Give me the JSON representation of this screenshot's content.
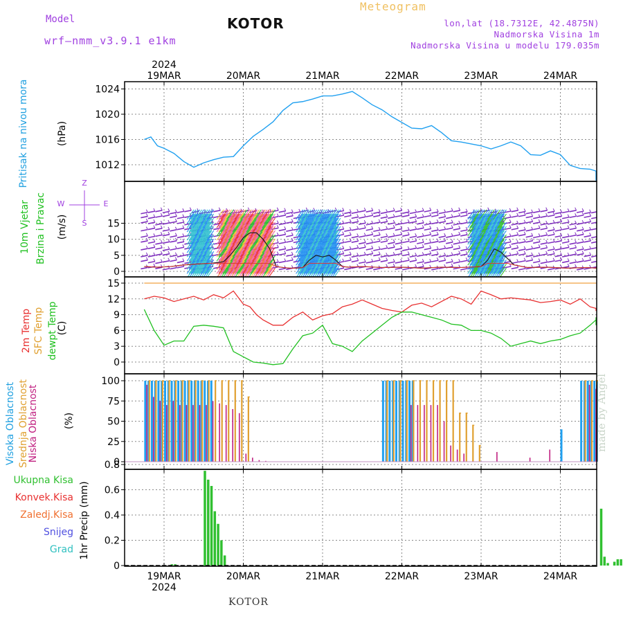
{
  "header": {
    "model_label": "Model",
    "model_name": "wrf—nmm_v3.9.1  e1km",
    "title": "KOTOR",
    "meteogram": "Meteogram",
    "lonlat": "lon,lat (18.7312E, 42.4875N)",
    "altitude": "Nadmorska Visina 1m",
    "model_altitude": "Nadmorska Visina u modelu 179.035m"
  },
  "footer": {
    "station": "KOTOR",
    "credit": "made by Angel"
  },
  "time_axis": {
    "year": "2024",
    "days": [
      "19MAR",
      "20MAR",
      "21MAR",
      "22MAR",
      "23MAR",
      "24MAR"
    ],
    "start_hour": 0,
    "end_hour": 142
  },
  "panels": {
    "pressure": {
      "label": "Pritisak na nivou mora",
      "unit": "(hPa)",
      "ticks": [
        "1012",
        "1016",
        "1020",
        "1024"
      ]
    },
    "wind": {
      "label_line1": "10m Vjetar",
      "label_line2": "Brzina i Pravac",
      "unit": "(m/s)",
      "legend_top": "Z",
      "legend_left": "W",
      "legend_right": "E",
      "legend_bottom": "S",
      "ticks": [
        "0",
        "5",
        "10",
        "15"
      ]
    },
    "temp": {
      "label1": "2m Temp",
      "label2": "SFC Temp",
      "label3": "dewpt Temp",
      "unit": "(C)",
      "ticks": [
        "0",
        "3",
        "6",
        "9",
        "12",
        "15"
      ]
    },
    "cloud": {
      "label1": "Visoka Oblacnost",
      "label2": "Srednja Oblacnost",
      "label3": "Niska Oblacnost",
      "unit": "(%)",
      "ticks": [
        "0",
        "25",
        "50",
        "75",
        "100"
      ]
    },
    "precip": {
      "legend": [
        "Ukupna Kisa",
        "Konvek.Kisa",
        "Zaledj.Kisa",
        "Snijeg",
        "Grad"
      ],
      "unit": "1hr Precip (mm)",
      "ticks": [
        "0",
        "0.2",
        "0.4",
        "0.6",
        "0.8"
      ]
    }
  },
  "colors": {
    "pressure": "#20a0f0",
    "temp2m": "#e83030",
    "sfc": "#f0a040",
    "dewpt": "#20c020",
    "high_cloud": "#20a0f0",
    "mid_cloud": "#e0a030",
    "low_cloud": "#c02080",
    "precip_total": "#30c030",
    "precip_conv": "#e83030",
    "precip_frz": "#f07030",
    "snow": "#5050e0",
    "graupel": "#30c0c0",
    "label_purple": "#a040e0",
    "label_blue": "#20a0e0"
  },
  "chart_data": [
    {
      "type": "line",
      "title": "Pritisak na nivou mora",
      "ylabel": "(hPa)",
      "ylim": [
        1009,
        1025
      ],
      "series": [
        {
          "name": "Pritisak na nivou mora",
          "x": [
            -6,
            -4,
            -2,
            0,
            3,
            6,
            9,
            12,
            15,
            18,
            21,
            24,
            27,
            30,
            33,
            36,
            39,
            42,
            45,
            48,
            51,
            54,
            57,
            60,
            63,
            66,
            69,
            72,
            75,
            78,
            81,
            84,
            87,
            90,
            93,
            96,
            99,
            102,
            105,
            108,
            111,
            114,
            117,
            120,
            123,
            126,
            129,
            132,
            135,
            138,
            142
          ],
          "y": [
            1016.0,
            1016.4,
            1015.0,
            1014.6,
            1013.8,
            1012.5,
            1011.6,
            1012.3,
            1012.8,
            1013.2,
            1013.3,
            1015.0,
            1016.5,
            1017.6,
            1018.8,
            1020.6,
            1021.8,
            1022.0,
            1022.4,
            1022.9,
            1022.9,
            1023.2,
            1023.6,
            1022.6,
            1021.5,
            1020.7,
            1019.6,
            1018.7,
            1017.8,
            1017.7,
            1018.2,
            1017.1,
            1015.8,
            1015.6,
            1015.3,
            1015.0,
            1014.5,
            1015.0,
            1015.6,
            1015.0,
            1013.6,
            1013.5,
            1014.2,
            1013.6,
            1011.9,
            1011.4,
            1011.3,
            1011.0,
            1010.6,
            1010.3,
            1009.5
          ]
        }
      ]
    },
    {
      "type": "line",
      "title": "10m Vjetar Brzina i Pravac",
      "ylabel": "(m/s)",
      "ylim": [
        -1,
        19
      ],
      "series": [
        {
          "name": "Brzina",
          "x": [
            -6,
            -2,
            2,
            6,
            10,
            14,
            18,
            20,
            22,
            24,
            26,
            28,
            30,
            32,
            34,
            36,
            38,
            40,
            42,
            44,
            46,
            48,
            50,
            52,
            54,
            56,
            60,
            66,
            72,
            78,
            84,
            90,
            96,
            98,
            100,
            102,
            104,
            106,
            110,
            116,
            122,
            128,
            134,
            142
          ],
          "y": [
            1.5,
            1.3,
            1.5,
            2.0,
            2.3,
            2.5,
            3.0,
            5.0,
            7.5,
            10.5,
            12.0,
            12.0,
            10.0,
            7.0,
            1.5,
            1.2,
            1.0,
            1.0,
            1.2,
            3.5,
            5.0,
            4.5,
            5.0,
            3.5,
            1.5,
            1.3,
            1.5,
            1.2,
            1.3,
            1.0,
            1.3,
            1.2,
            1.5,
            3.5,
            7.0,
            6.0,
            4.0,
            2.0,
            1.2,
            1.3,
            1.0,
            1.2,
            1.0,
            1.3
          ]
        }
      ]
    },
    {
      "type": "line",
      "title": "2m Temp / SFC Temp / dewpt Temp",
      "ylabel": "(C)",
      "ylim": [
        -1,
        15.5
      ],
      "series": [
        {
          "name": "2m Temp",
          "x": [
            -6,
            -3,
            0,
            3,
            6,
            9,
            12,
            15,
            18,
            21,
            24,
            26,
            28,
            30,
            33,
            36,
            39,
            42,
            45,
            48,
            51,
            54,
            57,
            60,
            63,
            66,
            69,
            72,
            75,
            78,
            81,
            84,
            87,
            90,
            93,
            96,
            99,
            102,
            105,
            108,
            111,
            114,
            117,
            120,
            123,
            126,
            129,
            132,
            135,
            138,
            142
          ],
          "y": [
            12.0,
            12.5,
            12.2,
            11.5,
            12.0,
            12.5,
            11.8,
            12.8,
            12.2,
            13.5,
            11.0,
            10.5,
            9.0,
            8.0,
            7.0,
            7.0,
            8.5,
            9.5,
            8.0,
            8.8,
            9.2,
            10.5,
            11.0,
            11.8,
            11.0,
            10.2,
            9.8,
            9.5,
            10.8,
            11.2,
            10.5,
            11.5,
            12.5,
            12.0,
            11.0,
            13.5,
            12.8,
            12.0,
            12.2,
            12.0,
            11.8,
            11.3,
            11.5,
            11.8,
            11.0,
            12.0,
            10.5,
            10.2,
            10.0,
            9.8,
            9.7
          ]
        },
        {
          "name": "SFC Temp",
          "x": [
            -6,
            142
          ],
          "y": [
            15.0,
            15.0
          ]
        },
        {
          "name": "dewpt Temp",
          "x": [
            -6,
            -3,
            0,
            3,
            6,
            9,
            12,
            15,
            18,
            21,
            24,
            27,
            30,
            33,
            36,
            39,
            42,
            45,
            48,
            51,
            54,
            57,
            60,
            63,
            66,
            69,
            72,
            75,
            78,
            81,
            84,
            87,
            90,
            93,
            96,
            99,
            102,
            105,
            108,
            111,
            114,
            117,
            120,
            123,
            126,
            129,
            132,
            135,
            138,
            142
          ],
          "y": [
            10.0,
            6.0,
            3.2,
            4.0,
            4.0,
            6.8,
            7.0,
            6.8,
            6.5,
            2.0,
            1.0,
            0.0,
            -0.2,
            -0.5,
            -0.3,
            2.5,
            5.0,
            5.5,
            7.0,
            3.5,
            3.0,
            2.0,
            4.0,
            5.5,
            7.0,
            8.5,
            9.5,
            9.5,
            9.0,
            8.5,
            8.0,
            7.2,
            7.0,
            6.0,
            6.0,
            5.5,
            4.5,
            3.0,
            3.5,
            4.0,
            3.5,
            4.0,
            4.3,
            5.0,
            5.5,
            7.0,
            8.0,
            7.0,
            8.5,
            8.5
          ]
        }
      ]
    },
    {
      "type": "bar",
      "title": "Visoka / Srednja / Niska Oblacnost",
      "ylabel": "(%)",
      "ylim": [
        0,
        100
      ],
      "series": [
        {
          "name": "Visoka Oblacnost",
          "x": [
            -6,
            -5,
            -4,
            -3,
            -2,
            -1,
            0,
            1,
            2,
            3,
            4,
            5,
            6,
            7,
            8,
            9,
            10,
            11,
            12,
            13,
            14,
            66,
            67,
            68,
            69,
            70,
            71,
            72,
            73,
            74,
            75,
            120,
            126,
            127,
            128,
            129,
            130,
            131,
            132,
            133
          ],
          "y": [
            100,
            100,
            100,
            100,
            100,
            100,
            100,
            100,
            100,
            100,
            100,
            100,
            100,
            100,
            100,
            100,
            100,
            100,
            100,
            100,
            100,
            100,
            100,
            100,
            100,
            100,
            100,
            100,
            100,
            100,
            100,
            40,
            100,
            100,
            100,
            100,
            100,
            100,
            100,
            100
          ]
        },
        {
          "name": "Srednja Oblacnost",
          "x": [
            -5,
            -3,
            -1,
            1,
            3,
            5,
            7,
            9,
            11,
            13,
            15,
            17,
            19,
            21,
            23,
            25,
            67,
            69,
            71,
            73,
            75,
            77,
            79,
            81,
            83,
            85,
            87,
            89,
            91,
            93,
            95,
            127,
            129,
            131,
            133
          ],
          "y": [
            100,
            100,
            100,
            100,
            100,
            100,
            100,
            100,
            100,
            100,
            100,
            100,
            100,
            100,
            100,
            80,
            100,
            100,
            100,
            100,
            100,
            100,
            100,
            100,
            100,
            100,
            100,
            60,
            60,
            45,
            20,
            100,
            100,
            100,
            100
          ]
        },
        {
          "name": "Niska Oblacnost",
          "x": [
            -6,
            -4,
            -2,
            0,
            2,
            4,
            6,
            8,
            10,
            12,
            14,
            16,
            18,
            20,
            22,
            24,
            26,
            28,
            30,
            74,
            76,
            78,
            80,
            82,
            84,
            86,
            88,
            90,
            100,
            110,
            116,
            128,
            130,
            132,
            134,
            136,
            138,
            140
          ],
          "y": [
            95,
            80,
            75,
            70,
            75,
            70,
            70,
            70,
            70,
            70,
            75,
            72,
            70,
            65,
            60,
            10,
            5,
            2,
            1,
            70,
            70,
            70,
            70,
            70,
            50,
            20,
            15,
            10,
            12,
            5,
            15,
            95,
            90,
            50,
            40,
            60,
            80,
            95
          ]
        }
      ]
    },
    {
      "type": "bar",
      "title": "1hr Precip",
      "ylabel": "1hr Precip (mm)",
      "ylim": [
        0,
        0.9
      ],
      "series": [
        {
          "name": "Ukupna Kisa",
          "x": [
            2,
            3,
            12,
            13,
            14,
            15,
            16,
            17,
            18,
            132,
            133,
            134,
            136,
            137,
            138,
            139,
            140,
            141,
            142
          ],
          "y": [
            0.01,
            0.01,
            0.75,
            0.68,
            0.63,
            0.43,
            0.33,
            0.2,
            0.08,
            0.45,
            0.07,
            0.02,
            0.03,
            0.05,
            0.05,
            0.02,
            0.22,
            0.25,
            0.29
          ]
        }
      ]
    }
  ]
}
